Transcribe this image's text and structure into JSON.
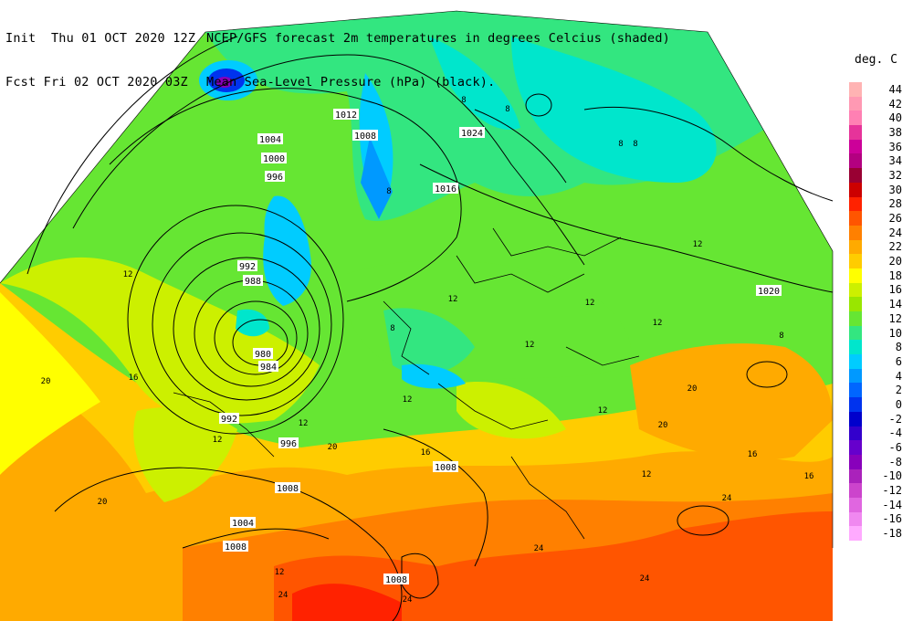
{
  "header": {
    "init_label": "Init",
    "init_time": "Thu 01 OCT 2020 12Z",
    "fcst_label": "Fcst",
    "fcst_time": "Fri 02 OCT 2020 03Z",
    "line1": "NCEP/GFS forecast 2m temperatures in degrees Celcius (shaded)",
    "line2": "Mean Sea-Level Pressure (hPa) (black)."
  },
  "legend": {
    "title": "deg. C",
    "items": [
      {
        "label": "44",
        "color": "#ffb3b3"
      },
      {
        "label": "42",
        "color": "#ff99b3"
      },
      {
        "label": "40",
        "color": "#ff80b3"
      },
      {
        "label": "38",
        "color": "#e6339a"
      },
      {
        "label": "36",
        "color": "#cc0099"
      },
      {
        "label": "34",
        "color": "#b30080"
      },
      {
        "label": "32",
        "color": "#990033"
      },
      {
        "label": "30",
        "color": "#cc0000"
      },
      {
        "label": "28",
        "color": "#ff2200"
      },
      {
        "label": "26",
        "color": "#ff5500"
      },
      {
        "label": "24",
        "color": "#ff8000"
      },
      {
        "label": "22",
        "color": "#ffaa00"
      },
      {
        "label": "20",
        "color": "#ffcc00"
      },
      {
        "label": "18",
        "color": "#ffff00"
      },
      {
        "label": "16",
        "color": "#ccf000"
      },
      {
        "label": "14",
        "color": "#99e600"
      },
      {
        "label": "12",
        "color": "#66e633"
      },
      {
        "label": "10",
        "color": "#33e680"
      },
      {
        "label": "8",
        "color": "#00e6cc"
      },
      {
        "label": "6",
        "color": "#00ccff"
      },
      {
        "label": "4",
        "color": "#0099ff"
      },
      {
        "label": "2",
        "color": "#0066ff"
      },
      {
        "label": "0",
        "color": "#0033ee"
      },
      {
        "label": "-2",
        "color": "#0000cc"
      },
      {
        "label": "-4",
        "color": "#3300cc"
      },
      {
        "label": "-6",
        "color": "#6600cc"
      },
      {
        "label": "-8",
        "color": "#8800bb"
      },
      {
        "label": "-10",
        "color": "#aa22bb"
      },
      {
        "label": "-12",
        "color": "#cc44cc"
      },
      {
        "label": "-14",
        "color": "#e066e0"
      },
      {
        "label": "-16",
        "color": "#f088f0"
      },
      {
        "label": "-18",
        "color": "#ffaaff"
      }
    ]
  },
  "pressure_labels": [
    "1012",
    "1008",
    "1004",
    "1000",
    "996",
    "1024",
    "1016",
    "992",
    "988",
    "980",
    "984",
    "992",
    "996",
    "1008",
    "1004",
    "1008",
    "1020",
    "1008",
    "1008"
  ],
  "temperature_labels": [
    "8",
    "8",
    "8",
    "8",
    "8",
    "12",
    "12",
    "12",
    "12",
    "12",
    "12",
    "12",
    "12",
    "12",
    "12",
    "16",
    "16",
    "16",
    "20",
    "20",
    "20",
    "20",
    "20",
    "24",
    "24",
    "24",
    "24",
    "24",
    "12",
    "12",
    "16",
    "8",
    "8"
  ]
}
